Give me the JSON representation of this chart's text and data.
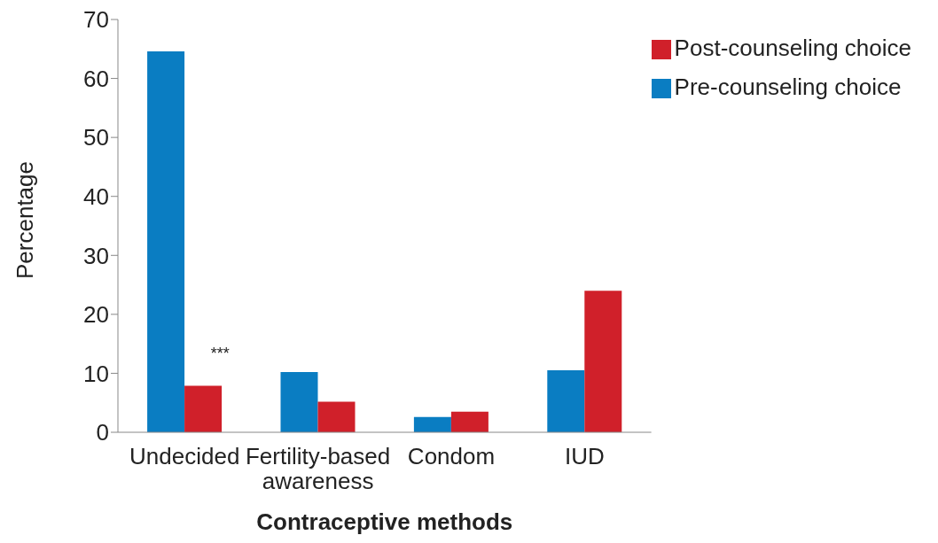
{
  "chart_data": {
    "type": "bar",
    "xlabel": "Contraceptive methods",
    "ylabel": "Percentage",
    "categories": [
      "Undecided",
      "Fertility-based awareness",
      "Condom",
      "IUD"
    ],
    "series": [
      {
        "name": "Pre-counseling choice",
        "color": "#0a7dc2",
        "values": [
          64.6,
          10.2,
          2.6,
          10.5
        ]
      },
      {
        "name": "Post-counseling choice",
        "color": "#d0202a",
        "values": [
          7.9,
          5.2,
          3.5,
          24.0
        ]
      }
    ],
    "ylim": [
      0,
      70
    ],
    "yticks": [
      0,
      10,
      20,
      30,
      40,
      50,
      60,
      70
    ],
    "grid": false,
    "legend": "top right",
    "annotations": [
      {
        "text": "***",
        "x": "Undecided",
        "y": 12.5
      }
    ]
  }
}
